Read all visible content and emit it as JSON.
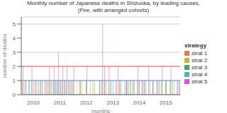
{
  "chart_data": {
    "type": "bar",
    "title": "Monthly number of Japanese deaths in Shizuoka, by leading causes,",
    "subtitle": "(Fire, with arranged cohorts)",
    "xlabel": "months",
    "ylabel": "number of deaths",
    "legend_title": "strategy",
    "legend": "right",
    "grid": true,
    "ylim": [
      0,
      5.5
    ],
    "yticks": [
      0,
      1,
      2,
      3,
      4,
      5
    ],
    "reference_lines": [
      {
        "value": 1.0,
        "color": "#7799cc"
      },
      {
        "value": 2.0,
        "color": "#dd4444"
      }
    ],
    "categories": [
      null,
      null,
      null,
      null,
      null,
      "2010",
      null,
      null,
      null,
      null,
      null,
      null,
      null,
      null,
      null,
      null,
      null,
      "2011",
      null,
      null,
      null,
      null,
      null,
      null,
      null,
      null,
      null,
      null,
      null,
      "2012",
      null,
      null,
      null,
      null,
      null,
      null,
      null,
      null,
      null,
      null,
      null,
      "2013",
      null,
      null,
      null,
      null,
      null,
      null,
      null,
      null,
      null,
      null,
      null,
      "2014",
      null,
      null,
      null,
      null,
      null,
      null,
      null,
      null,
      null,
      null,
      null,
      "2015",
      null,
      null,
      null,
      null,
      null,
      null
    ],
    "series": [
      {
        "name": "strat 1",
        "color": "#e8735a",
        "values": [
          0,
          0,
          0,
          0,
          0,
          0,
          0,
          0,
          0,
          0,
          0,
          0,
          0,
          0,
          0,
          0,
          0,
          0,
          0,
          0,
          0,
          0,
          0,
          0,
          0,
          0,
          0,
          0,
          0,
          0,
          0,
          0,
          0,
          0,
          0,
          0,
          1,
          0,
          0,
          0,
          0,
          0,
          0,
          0,
          0,
          0,
          0,
          0,
          1,
          0,
          0,
          0,
          0,
          0,
          0,
          0,
          0,
          0,
          0,
          0,
          0,
          0,
          0,
          0,
          0,
          0,
          0,
          0,
          0,
          0,
          0,
          0
        ]
      },
      {
        "name": "strat 2",
        "color": "#c8b428",
        "values": [
          1,
          0,
          1,
          0,
          0,
          1,
          0,
          1,
          0,
          1,
          0,
          1,
          1,
          1,
          0,
          1,
          0,
          1,
          0,
          1,
          0,
          1,
          0,
          1,
          0,
          1,
          0,
          1,
          0,
          1,
          0,
          1,
          0,
          1,
          0,
          1,
          0,
          1,
          0,
          0,
          1,
          0,
          0,
          1,
          0,
          1,
          0,
          0,
          0,
          1,
          0,
          1,
          0,
          1,
          0,
          1,
          0,
          0,
          1,
          0,
          0,
          1,
          0,
          1,
          0,
          1,
          0,
          1,
          0,
          1,
          0,
          0
        ]
      },
      {
        "name": "strat 3",
        "color": "#50a060",
        "values": [
          0,
          0,
          0,
          1,
          0,
          0,
          1,
          0,
          0,
          1,
          0,
          0,
          0,
          0,
          1,
          0,
          1,
          0,
          1,
          0,
          1,
          0,
          1,
          0,
          0,
          0,
          1,
          0,
          0,
          1,
          0,
          0,
          1,
          0,
          0,
          1,
          0,
          0,
          1,
          0,
          0,
          1,
          0,
          0,
          1,
          0,
          0,
          1,
          0,
          0,
          1,
          0,
          0,
          1,
          0,
          0,
          1,
          0,
          0,
          1,
          0,
          0,
          1,
          0,
          0,
          1,
          0,
          0,
          1,
          0,
          0,
          1
        ]
      },
      {
        "name": "strat 4",
        "color": "#40b8c8",
        "values": [
          1,
          1,
          0,
          1,
          1,
          0,
          1,
          0,
          1,
          0,
          1,
          0,
          1,
          1,
          1,
          1,
          1,
          1,
          0,
          1,
          0,
          1,
          0,
          1,
          0,
          0,
          0,
          0,
          0,
          0,
          0,
          0,
          0,
          0,
          0,
          0,
          1,
          1,
          0,
          1,
          1,
          0,
          0,
          0,
          0,
          0,
          1,
          1,
          1,
          1,
          0,
          0,
          1,
          0,
          1,
          1,
          0,
          1,
          0,
          1,
          0,
          1,
          0,
          1,
          0,
          1,
          0,
          1,
          0,
          0,
          1,
          0
        ]
      },
      {
        "name": "strat 5",
        "color": "#e050e0",
        "values": [
          2,
          1,
          0,
          0,
          2,
          1,
          0,
          1,
          1,
          0,
          1,
          1,
          2,
          0,
          2,
          1,
          3,
          1,
          2,
          1,
          2,
          1,
          1,
          2,
          0,
          0,
          1,
          0,
          0,
          2,
          0,
          0,
          0,
          0,
          0,
          0,
          5,
          2,
          0,
          2,
          0,
          0,
          1,
          2,
          1,
          0,
          0,
          1,
          0,
          0,
          1,
          0,
          2,
          0,
          1,
          1,
          0,
          2,
          0,
          1,
          0,
          1,
          0,
          2,
          0,
          0,
          0,
          2,
          0,
          0,
          1,
          1
        ]
      }
    ]
  }
}
